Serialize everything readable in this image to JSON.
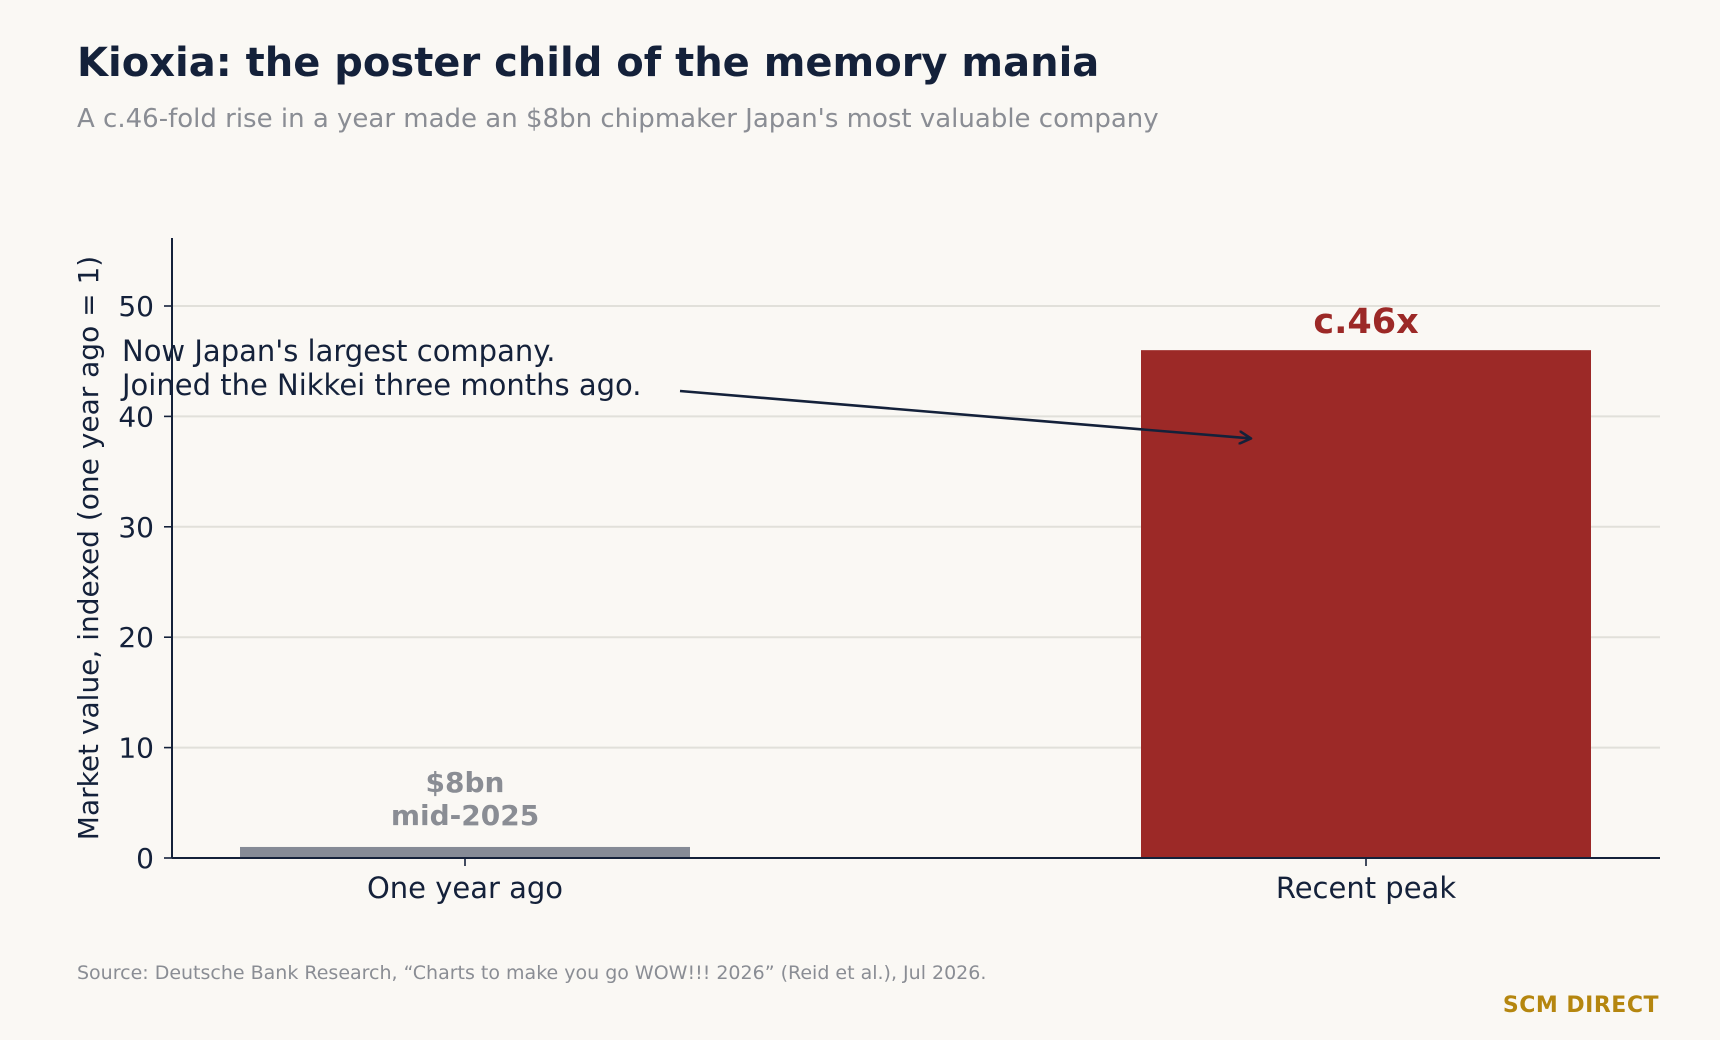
{
  "header": {
    "title": "Kioxia: the poster child of the memory mania",
    "subtitle": "A c.46-fold rise in a year made an $8bn chipmaker Japan's most valuable company"
  },
  "chart_data": {
    "type": "bar",
    "categories": [
      "One year ago",
      "Recent peak"
    ],
    "values": [
      1,
      46
    ],
    "bar_colors": [
      "#868b96",
      "#9c2927"
    ],
    "ylabel": "Market value, indexed (one year ago = 1)",
    "ylim": [
      0,
      56
    ],
    "yticks": [
      0,
      10,
      20,
      30,
      40,
      50
    ],
    "grid": "horizontal",
    "data_labels": [
      {
        "category": "One year ago",
        "lines": [
          "$8bn",
          "mid-2025"
        ],
        "color": "#8a8d94"
      },
      {
        "category": "Recent peak",
        "lines": [
          "c.46x"
        ],
        "color": "#9c2927"
      }
    ],
    "annotation": {
      "lines": [
        "Now Japan's largest company.",
        "Joined the Nikkei three months ago."
      ],
      "target": {
        "category": "Recent peak",
        "value": 38
      }
    }
  },
  "footer": {
    "source": "Source: Deutsche Bank Research, “Charts to make you go WOW!!! 2026” (Reid et al.), Jul 2026.",
    "brand": "SCM DIRECT"
  },
  "colors": {
    "text": "#14213a",
    "muted": "#8a8d94",
    "grid": "#e1e0da",
    "brand": "#b5860f"
  }
}
